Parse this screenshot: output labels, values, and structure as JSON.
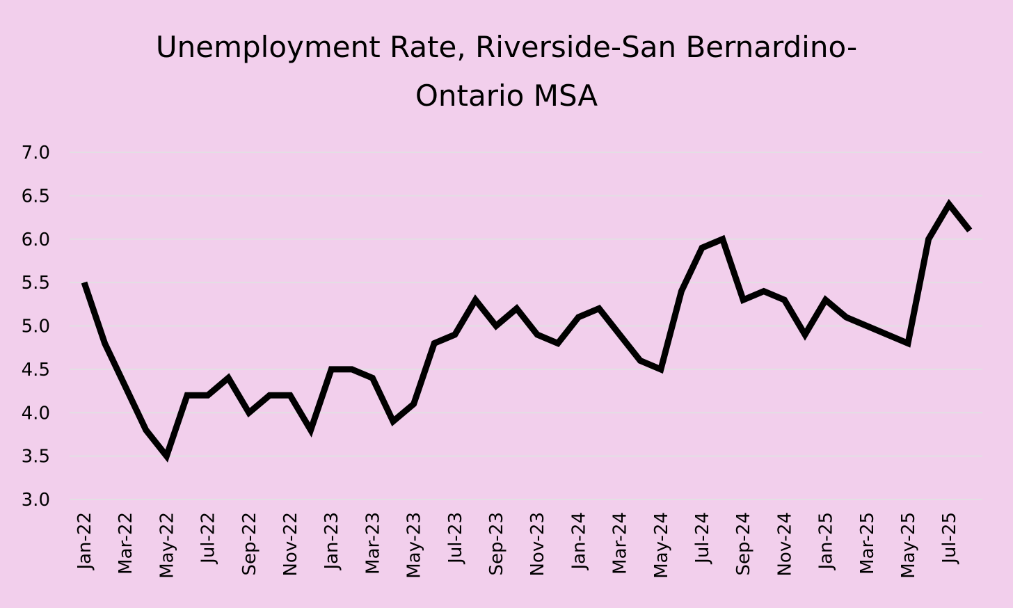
{
  "chart_data": {
    "type": "line",
    "title_lines": [
      "Unemployment Rate, Riverside-San Bernardino-",
      "Ontario MSA"
    ],
    "xlabel": "",
    "ylabel": "",
    "ylim": [
      3.0,
      7.0
    ],
    "y_ticks": [
      "3.0",
      "3.5",
      "4.0",
      "4.5",
      "5.0",
      "5.5",
      "6.0",
      "6.5",
      "7.0"
    ],
    "grid": true,
    "legend": "none",
    "line_color": "#000000",
    "x": [
      "Jan-22",
      "Feb-22",
      "Mar-22",
      "Apr-22",
      "May-22",
      "Jun-22",
      "Jul-22",
      "Aug-22",
      "Sep-22",
      "Oct-22",
      "Nov-22",
      "Dec-22",
      "Jan-23",
      "Feb-23",
      "Mar-23",
      "Apr-23",
      "May-23",
      "Jun-23",
      "Jul-23",
      "Aug-23",
      "Sep-23",
      "Oct-23",
      "Nov-23",
      "Dec-23",
      "Jan-24",
      "Feb-24",
      "Mar-24",
      "Apr-24",
      "May-24",
      "Jun-24",
      "Jul-24",
      "Aug-24",
      "Sep-24",
      "Oct-24",
      "Nov-24",
      "Dec-24",
      "Jan-25",
      "Feb-25",
      "Mar-25",
      "Apr-25",
      "May-25",
      "Jun-25",
      "Jul-25",
      "Aug-25"
    ],
    "x_tick_labels": [
      "Jan-22",
      "Mar-22",
      "May-22",
      "Jul-22",
      "Sep-22",
      "Nov-22",
      "Jan-23",
      "Mar-23",
      "May-23",
      "Jul-23",
      "Sep-23",
      "Nov-23",
      "Jan-24",
      "Mar-24",
      "May-24",
      "Jul-24",
      "Sep-24",
      "Nov-24",
      "Jan-25",
      "Mar-25",
      "May-25",
      "Jul-25"
    ],
    "series": [
      {
        "values": [
          5.5,
          4.8,
          4.3,
          3.8,
          3.5,
          4.2,
          4.2,
          4.4,
          4.0,
          4.2,
          4.2,
          3.8,
          4.5,
          4.5,
          4.4,
          3.9,
          4.1,
          4.8,
          4.9,
          5.3,
          5.0,
          5.2,
          4.9,
          4.8,
          5.1,
          5.2,
          4.9,
          4.6,
          4.5,
          5.4,
          5.9,
          6.0,
          5.3,
          5.4,
          5.3,
          4.9,
          5.3,
          5.1,
          5.0,
          4.9,
          4.8,
          6.0,
          6.4,
          6.1
        ]
      }
    ]
  },
  "colors": {
    "background": "#f2cfec",
    "gridline": "#e3dfe4",
    "line": "#000000"
  }
}
